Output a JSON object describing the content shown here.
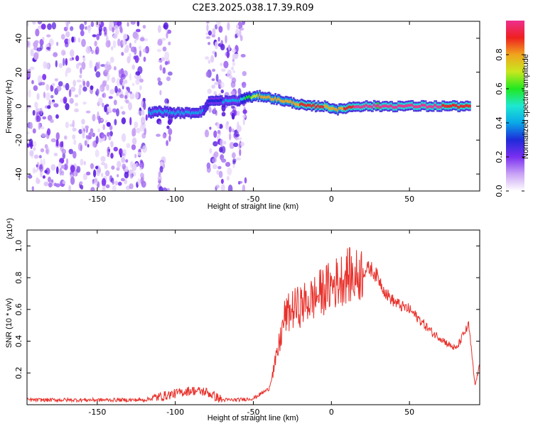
{
  "title": "C2E3.2025.038.17.39.R09",
  "colors": {
    "snr_line": "#e8302a",
    "frame": "#000000",
    "background": "#ffffff"
  },
  "chart_data": [
    {
      "type": "heatmap",
      "xlabel": "Height of straight line (km)",
      "ylabel": "Frequency (Hz)",
      "xlim": [
        -195,
        95
      ],
      "ylim": [
        -50,
        50
      ],
      "xticks": [
        -150,
        -100,
        -50,
        0,
        50
      ],
      "yticks": [
        -40,
        -20,
        0,
        20,
        40
      ],
      "grid": false,
      "noise_regions": [
        {
          "x_from": -195,
          "x_to": -118
        },
        {
          "x_from": -111,
          "x_to": -103
        },
        {
          "x_from": -80,
          "x_to": -55
        }
      ],
      "ridge": [
        {
          "x": -117,
          "freq": -4,
          "amp": 0.35
        },
        {
          "x": -110,
          "freq": -3,
          "amp": 0.4
        },
        {
          "x": -100,
          "freq": -4,
          "amp": 0.38
        },
        {
          "x": -90,
          "freq": -4,
          "amp": 0.4
        },
        {
          "x": -82,
          "freq": -3,
          "amp": 0.35
        },
        {
          "x": -78,
          "freq": 3,
          "amp": 0.3
        },
        {
          "x": -60,
          "freq": 3,
          "amp": 0.4
        },
        {
          "x": -55,
          "freq": 5,
          "amp": 0.55
        },
        {
          "x": -45,
          "freq": 6,
          "amp": 0.8
        },
        {
          "x": -35,
          "freq": 4,
          "amp": 0.75
        },
        {
          "x": -25,
          "freq": 2,
          "amp": 0.8
        },
        {
          "x": -15,
          "freq": 0,
          "amp": 0.9
        },
        {
          "x": -5,
          "freq": 0,
          "amp": 0.85
        },
        {
          "x": 5,
          "freq": -2,
          "amp": 0.8
        },
        {
          "x": 15,
          "freq": 0,
          "amp": 0.95
        },
        {
          "x": 30,
          "freq": 0,
          "amp": 1.0
        },
        {
          "x": 50,
          "freq": 0,
          "amp": 0.97
        },
        {
          "x": 70,
          "freq": 0,
          "amp": 0.95
        },
        {
          "x": 90,
          "freq": 0,
          "amp": 0.9
        }
      ],
      "colorbar": {
        "label": "Normalized spectral amplitude",
        "ticks": [
          0.0,
          0.2,
          0.4,
          0.6,
          0.8
        ],
        "tick_labels": [
          "0.0",
          "0.2",
          "0.4",
          "0.6",
          "0.8"
        ],
        "range": [
          0,
          1
        ],
        "stops": [
          "#ffffff",
          "#c9a3f5",
          "#7a2ff0",
          "#1e2bd9",
          "#0aa8e8",
          "#1ee8d0",
          "#20e820",
          "#c8e81e",
          "#f0a51e",
          "#ee2020",
          "#ee2f8f"
        ]
      }
    },
    {
      "type": "line",
      "xlabel": "Height of straight line (km)",
      "ylabel": "SNR (10 * v/v)",
      "y_multiplier": "(x10⁴)",
      "xlim": [
        -195,
        95
      ],
      "ylim": [
        0,
        1.1
      ],
      "xticks": [
        -150,
        -100,
        -50,
        0,
        50
      ],
      "yticks": [
        0.2,
        0.4,
        0.6,
        0.8,
        1.0
      ],
      "grid": false,
      "series": [
        {
          "x": [
            -195,
            -150,
            -120,
            -110,
            -100,
            -90,
            -80,
            -70,
            -60,
            -50,
            -40,
            -35,
            -30,
            -25,
            -20,
            -15,
            -10,
            -5,
            0,
            5,
            10,
            15,
            20,
            25,
            30,
            35,
            40,
            45,
            50,
            55,
            60,
            65,
            70,
            75,
            80,
            85,
            88,
            92,
            95
          ],
          "y": [
            0.03,
            0.03,
            0.03,
            0.05,
            0.07,
            0.09,
            0.08,
            0.03,
            0.03,
            0.04,
            0.1,
            0.3,
            0.55,
            0.6,
            0.62,
            0.65,
            0.68,
            0.72,
            0.75,
            0.78,
            0.82,
            0.8,
            0.84,
            0.86,
            0.8,
            0.7,
            0.65,
            0.62,
            0.6,
            0.55,
            0.5,
            0.45,
            0.42,
            0.38,
            0.35,
            0.45,
            0.5,
            0.12,
            0.25
          ]
        }
      ]
    }
  ]
}
